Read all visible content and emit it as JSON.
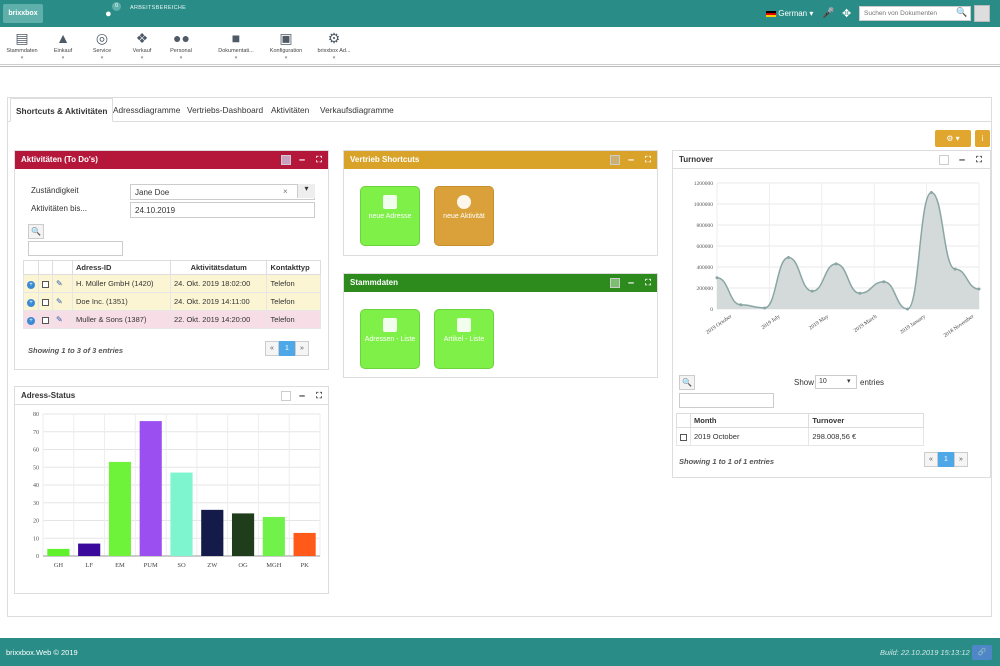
{
  "header": {
    "logo": "brixxbox",
    "workspace_badge": "0",
    "workspace_label": "ARBEITSBEREICHE",
    "language": "German",
    "search_placeholder": "Suchen von Dokumenten"
  },
  "menu": {
    "items": [
      {
        "label": "Stammdaten",
        "icon": "database-icon"
      },
      {
        "label": "Einkauf",
        "icon": "basket-icon"
      },
      {
        "label": "Service",
        "icon": "lifebuoy-icon"
      },
      {
        "label": "Verkauf",
        "icon": "handshake-icon"
      },
      {
        "label": "Personal",
        "icon": "users-icon"
      },
      {
        "label": "Dokumentati...",
        "icon": "book-icon"
      },
      {
        "label": "Konfiguration",
        "icon": "image-icon"
      },
      {
        "label": "brixxbox Ad...",
        "icon": "cogs-icon"
      }
    ]
  },
  "tabs": [
    "Shortcuts & Aktivitäten",
    "Adressdiagramme",
    "Vertriebs-Dashboard",
    "Aktivitäten",
    "Verkaufsdiagramme"
  ],
  "activities": {
    "title": "Aktivitäten (To Do's)",
    "label_responsible": "Zuständigkeit",
    "label_until": "Aktivitäten bis...",
    "responsible_value": "Jane Doe",
    "clear_glyph": "×",
    "until_value": "24.10.2019",
    "columns": [
      "Adress-ID",
      "Aktivitätsdatum",
      "Kontakttyp"
    ],
    "rows": [
      {
        "address": "H. Müller GmbH (1420)",
        "date": "24. Okt. 2019 18:02:00",
        "type": "Telefon"
      },
      {
        "address": "Doe Inc. (1351)",
        "date": "24. Okt. 2019 14:11:00",
        "type": "Telefon"
      },
      {
        "address": "Muller & Sons (1387)",
        "date": "22. Okt. 2019 14:20:00",
        "type": "Telefon"
      }
    ],
    "showing": "Showing 1 to 3 of 3 entries",
    "page": "1"
  },
  "shortcuts": {
    "title": "Vertrieb Shortcuts",
    "tiles": [
      "neue Adresse",
      "neue Aktivität"
    ]
  },
  "stammdaten": {
    "title": "Stammdaten",
    "tiles": [
      "Adressen - Liste",
      "Artikel - Liste"
    ]
  },
  "address_status": {
    "title": "Adress-Status"
  },
  "turnover": {
    "title": "Turnover",
    "show_label": "Show",
    "show_value": "10",
    "entries_label": "entries",
    "columns": [
      "Month",
      "Turnover"
    ],
    "rows": [
      {
        "month": "2019 October",
        "turnover": "298.008,56 €"
      }
    ],
    "showing": "Showing 1 to 1 of 1 entries",
    "page": "1"
  },
  "footer": {
    "copyright": "brixxbox.Web © 2019",
    "build": "Build: 22.10.2019 15:13:12"
  },
  "chart_data": [
    {
      "type": "bar",
      "categories": [
        "GH",
        "LF",
        "EM",
        "PUM",
        "SO",
        "ZW",
        "OG",
        "MGH",
        "PK"
      ],
      "values": [
        4,
        7,
        53,
        76,
        47,
        26,
        24,
        22,
        13
      ],
      "colors": [
        "#5ff22c",
        "#3b0a9c",
        "#6ff23a",
        "#9b4ff0",
        "#7ff5cf",
        "#141a4a",
        "#1f3d1a",
        "#70f24a",
        "#ff5a1a"
      ],
      "ylim": [
        0,
        80
      ],
      "yticks": [
        0,
        10,
        20,
        30,
        40,
        50,
        60,
        70,
        80
      ],
      "grid": true
    },
    {
      "type": "area",
      "x": [
        "2019 October",
        "",
        "2019 July",
        "",
        "2019 May",
        "",
        "2019 March",
        "",
        "2019 January",
        "",
        "2018 November",
        ""
      ],
      "xtick_labels": [
        "2019 October",
        "2019 July",
        "2019 May",
        "2019 March",
        "2019 January",
        "2018 November"
      ],
      "values": [
        298000,
        40000,
        10000,
        490000,
        170000,
        430000,
        150000,
        260000,
        0,
        1110000,
        380000,
        190000
      ],
      "ylim": [
        0,
        1200000
      ],
      "yticks": [
        0,
        200000,
        400000,
        600000,
        800000,
        1000000,
        1200000
      ],
      "grid": true
    }
  ]
}
